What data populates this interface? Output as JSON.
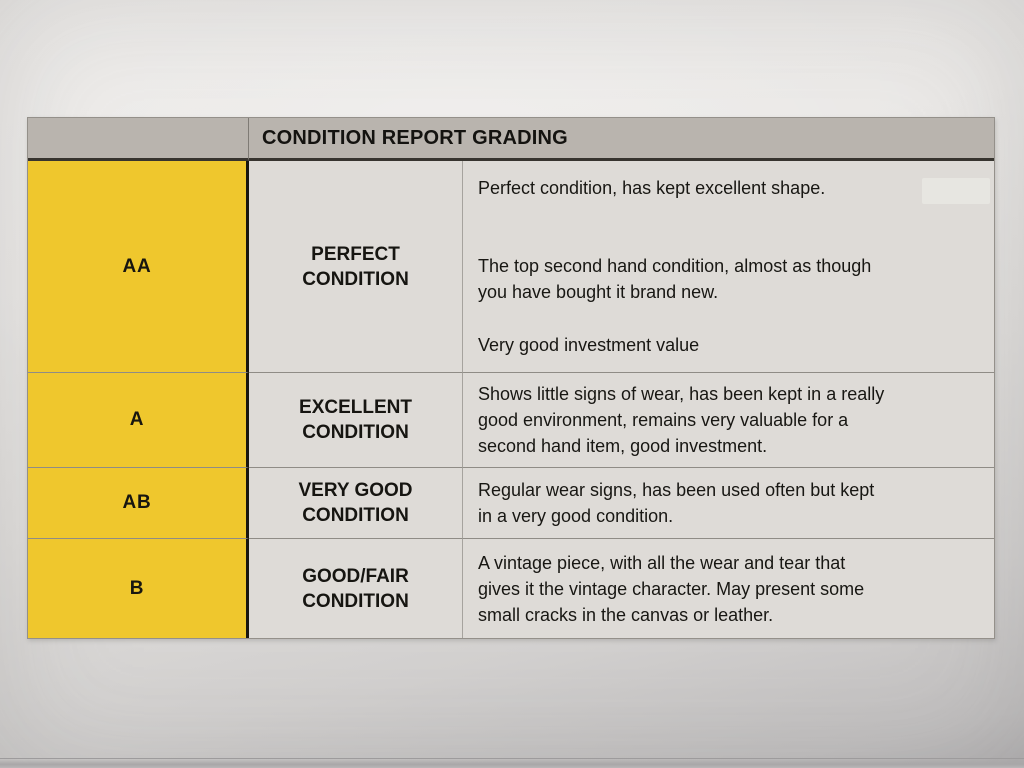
{
  "table": {
    "title": "CONDITION REPORT GRADING",
    "rows": [
      {
        "grade": "AA",
        "condition": "PERFECT\nCONDITION",
        "paragraphs": [
          "Perfect condition, has kept excellent shape.",
          "The top second hand condition, almost as though\nyou have bought it brand new.",
          "Very good investment value"
        ]
      },
      {
        "grade": "A",
        "condition": "EXCELLENT\nCONDITION",
        "paragraphs": [
          "Shows little signs of wear, has been kept in a really\ngood environment, remains very valuable for a\nsecond hand item, good investment."
        ]
      },
      {
        "grade": "AB",
        "condition": "VERY GOOD\nCONDITION",
        "paragraphs": [
          "Regular wear signs, has been used often but kept\nin a very good condition."
        ]
      },
      {
        "grade": "B",
        "condition": "GOOD/FAIR\nCONDITION",
        "paragraphs": [
          "A vintage piece, with all the wear and tear that\ngives it the vintage character. May present some\nsmall cracks in the canvas or leather."
        ]
      }
    ],
    "colors": {
      "grade_cell_bg": "#efc72d",
      "header_bg": "#b9b4ae",
      "cell_bg": "#dedbd7",
      "text": "#1a1917"
    }
  }
}
